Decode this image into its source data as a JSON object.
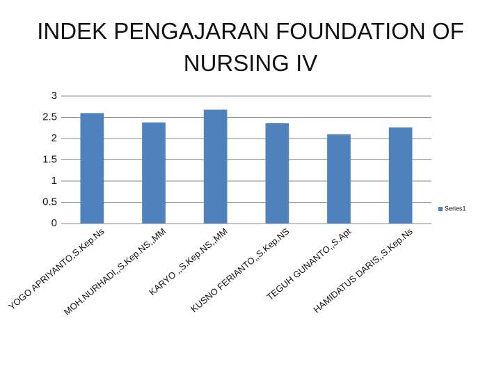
{
  "chart_data": {
    "type": "bar",
    "title": "INDEK PENGAJARAN FOUNDATION OF NURSING IV",
    "categories": [
      "YOGO APRIYANTO,S.Kep.Ns",
      "MOH.NURHADI,,S.Kep.NS,,MM",
      "KARYO ,,S.Kep.NS,,MM",
      "KUSNO FERIANTO,,S.Kep.NS",
      "TEGUH GUNANTO,,S.Apt",
      "HAMIDATUS DARIS,,S.Kep.Ns"
    ],
    "series": [
      {
        "name": "Series1",
        "color": "#4f81bd",
        "values": [
          2.6,
          2.38,
          2.68,
          2.36,
          2.1,
          2.26
        ]
      }
    ],
    "ylim": [
      0,
      3
    ],
    "yticks": [
      0,
      0.5,
      1,
      1.5,
      2,
      2.5,
      3
    ],
    "grid": true,
    "legend": "right"
  }
}
